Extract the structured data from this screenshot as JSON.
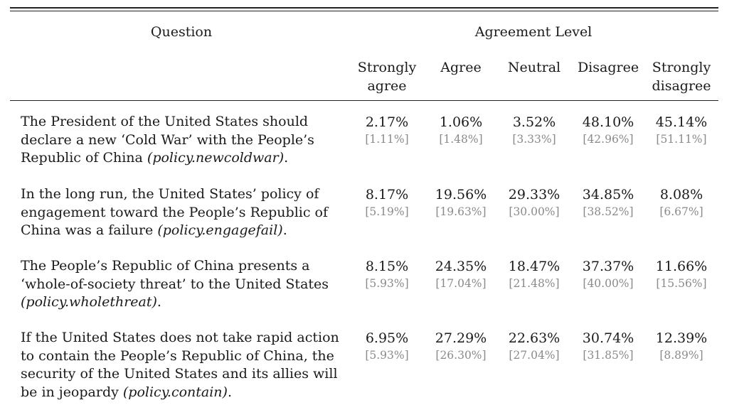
{
  "header": {
    "question_label": "Question",
    "agreement_label": "Agreement Level",
    "columns": [
      {
        "line1": "Strongly",
        "line2": "agree"
      },
      {
        "line1": "Agree",
        "line2": ""
      },
      {
        "line1": "Neutral",
        "line2": ""
      },
      {
        "line1": "Disagree",
        "line2": ""
      },
      {
        "line1": "Strongly",
        "line2": "disagree"
      }
    ]
  },
  "rows": [
    {
      "lines": [
        "The President of the United States should",
        "declare a new ‘Cold War’ with the People’s",
        "Republic of China "
      ],
      "var": "(policy.newcoldwar)",
      "suffix": ".",
      "values": [
        {
          "pct": "2.17%",
          "bench": "[1.11%]"
        },
        {
          "pct": "1.06%",
          "bench": "[1.48%]"
        },
        {
          "pct": "3.52%",
          "bench": "[3.33%]"
        },
        {
          "pct": "48.10%",
          "bench": "[42.96%]"
        },
        {
          "pct": "45.14%",
          "bench": "[51.11%]"
        }
      ]
    },
    {
      "lines": [
        "In the long run, the United States’ policy of",
        "engagement toward the People’s Republic of",
        "China was a failure "
      ],
      "var": "(policy.engagefail)",
      "suffix": ".",
      "values": [
        {
          "pct": "8.17%",
          "bench": "[5.19%]"
        },
        {
          "pct": "19.56%",
          "bench": "[19.63%]"
        },
        {
          "pct": "29.33%",
          "bench": "[30.00%]"
        },
        {
          "pct": "34.85%",
          "bench": "[38.52%]"
        },
        {
          "pct": "8.08%",
          "bench": "[6.67%]"
        }
      ]
    },
    {
      "lines": [
        "The People’s Republic of China presents a",
        "‘whole-of-society threat’ to the United States",
        ""
      ],
      "var": "(policy.wholethreat)",
      "suffix": ".",
      "values": [
        {
          "pct": "8.15%",
          "bench": "[5.93%]"
        },
        {
          "pct": "24.35%",
          "bench": "[17.04%]"
        },
        {
          "pct": "18.47%",
          "bench": "[21.48%]"
        },
        {
          "pct": "37.37%",
          "bench": "[40.00%]"
        },
        {
          "pct": "11.66%",
          "bench": "[15.56%]"
        }
      ]
    },
    {
      "lines": [
        "If the United States does not take rapid action",
        "to contain the People’s Republic of China, the",
        "security of the United States and its allies will",
        "be in jeopardy "
      ],
      "var": "(policy.contain)",
      "suffix": ".",
      "values": [
        {
          "pct": "6.95%",
          "bench": "[5.93%]"
        },
        {
          "pct": "27.29%",
          "bench": "[26.30%]"
        },
        {
          "pct": "22.63%",
          "bench": "[27.04%]"
        },
        {
          "pct": "30.74%",
          "bench": "[31.85%]"
        },
        {
          "pct": "12.39%",
          "bench": "[8.89%]"
        }
      ]
    }
  ]
}
